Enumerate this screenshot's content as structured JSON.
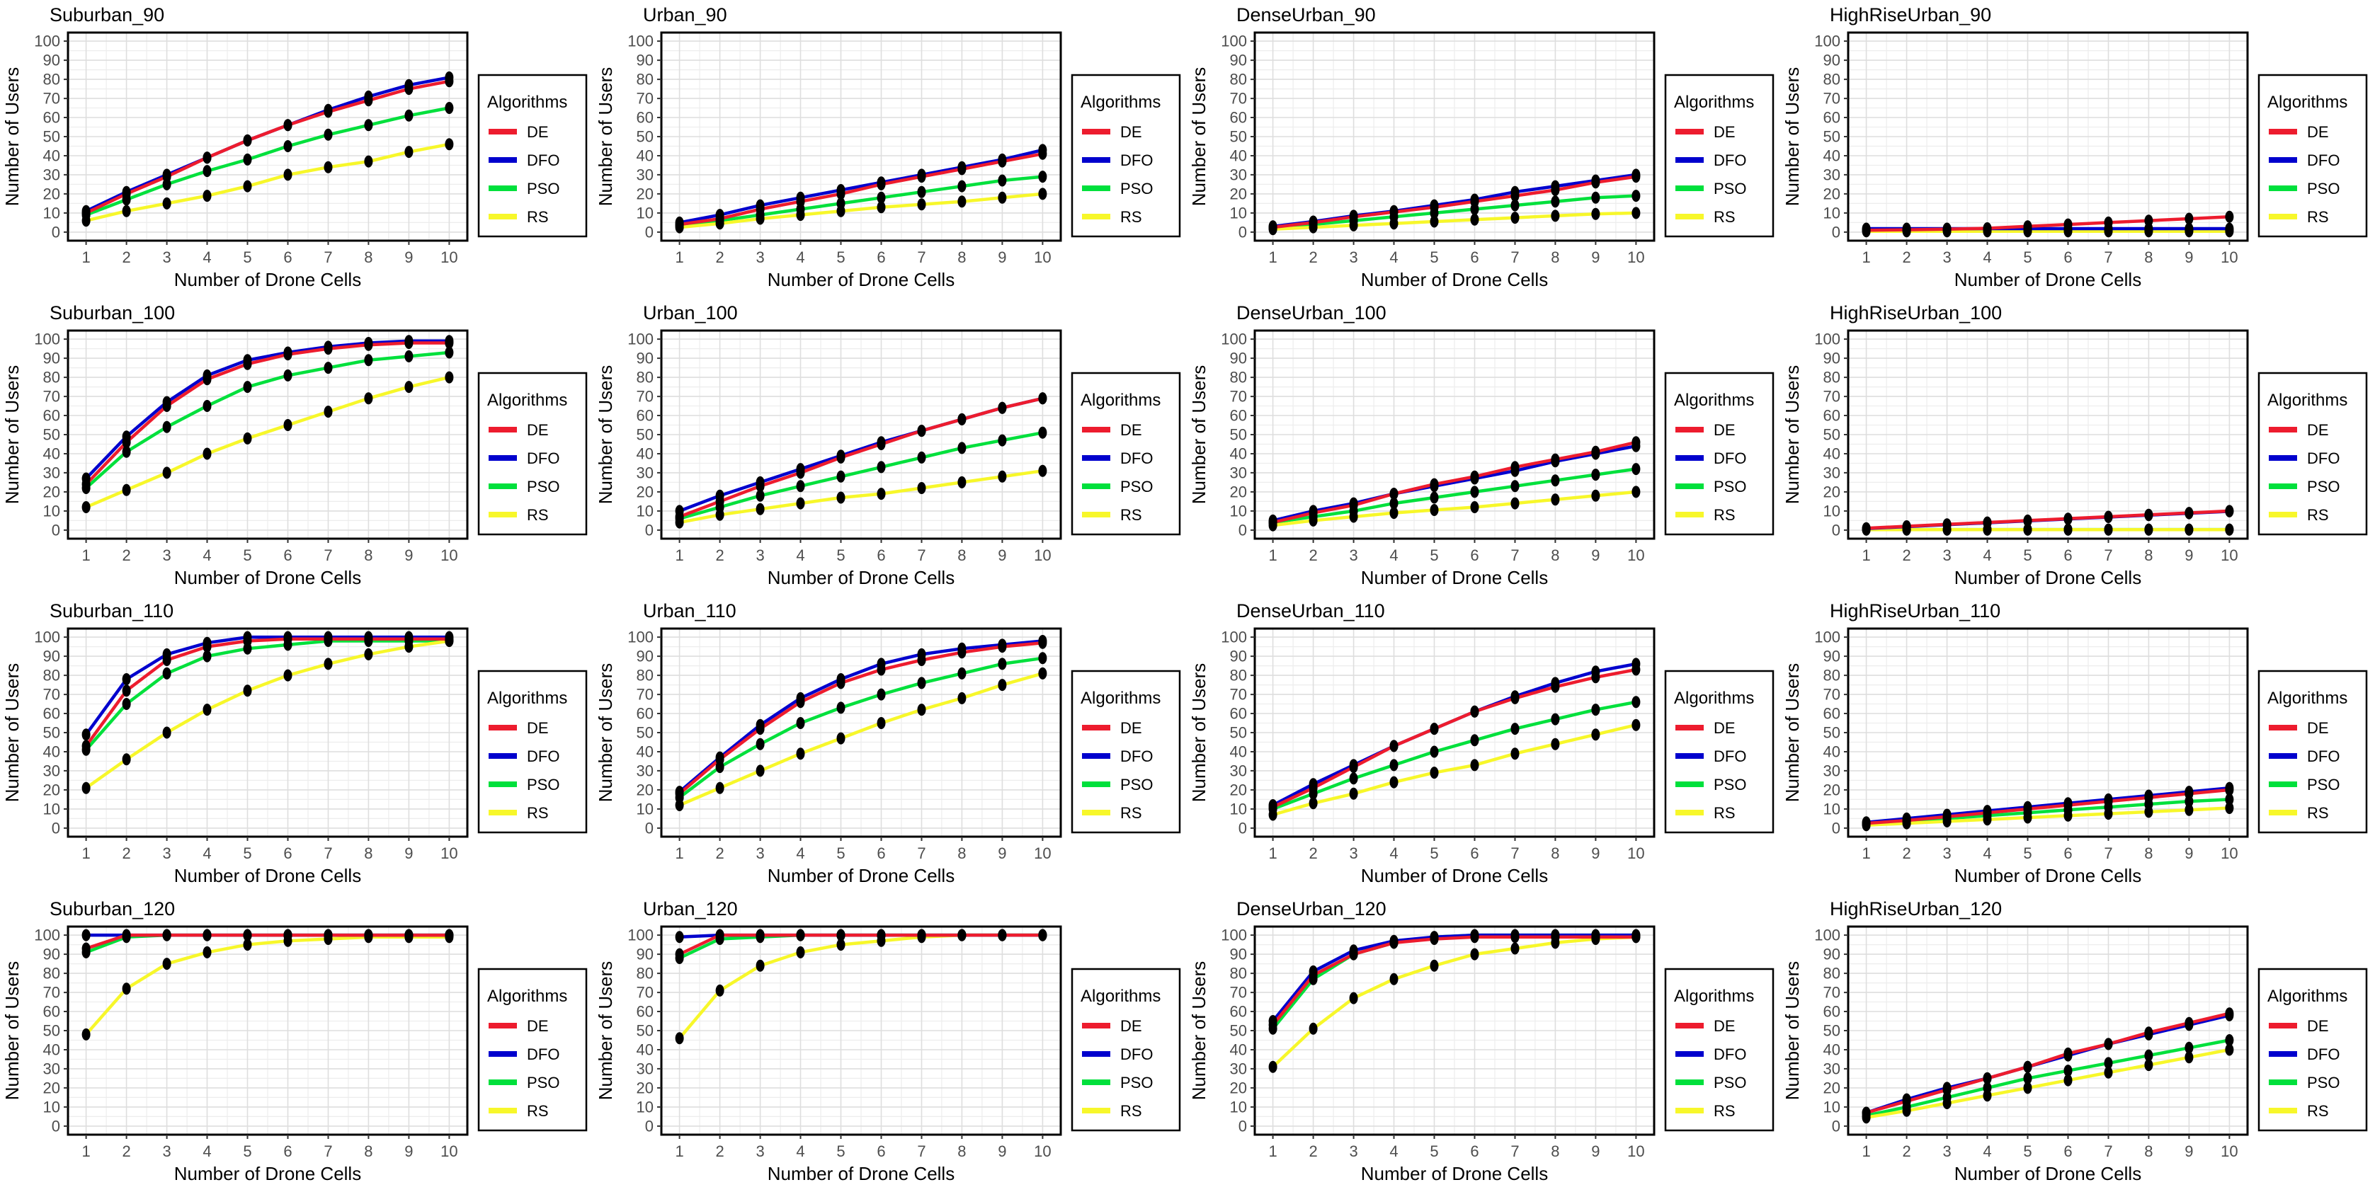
{
  "figure": {
    "background": "#ffffff",
    "grid_major_color": "#dedede",
    "grid_minor_color": "#ededed",
    "panel_border_color": "#000000",
    "tick_label_color": "#4d4d4d",
    "marker_color": "#000000"
  },
  "legend": {
    "title": "Algorithms",
    "position": "right",
    "items": [
      {
        "label": "DE",
        "color": "#ED1C2E"
      },
      {
        "label": "DFO",
        "color": "#0000CD"
      },
      {
        "label": "PSO",
        "color": "#00E03C"
      },
      {
        "label": "RS",
        "color": "#F7F72A"
      }
    ]
  },
  "axes": {
    "xlabel": "Number of Drone Cells",
    "ylabel": "Number of Users",
    "xticks": [
      1,
      2,
      3,
      4,
      5,
      6,
      7,
      8,
      9,
      10
    ],
    "yticks": [
      0,
      10,
      20,
      30,
      40,
      50,
      60,
      70,
      80,
      90,
      100
    ],
    "xlim": [
      1,
      10
    ],
    "ylim": [
      0,
      100
    ],
    "grid": true
  },
  "chart_data": [
    {
      "type": "line",
      "title": "Suburban_90",
      "x": [
        1,
        2,
        3,
        4,
        5,
        6,
        7,
        8,
        9,
        10
      ],
      "series": [
        {
          "name": "DE",
          "values": [
            10,
            20,
            29,
            39,
            48,
            56,
            63,
            69,
            75,
            79
          ]
        },
        {
          "name": "DFO",
          "values": [
            11,
            21,
            30,
            39,
            48,
            56,
            64,
            71,
            77,
            81
          ]
        },
        {
          "name": "PSO",
          "values": [
            9,
            17,
            25,
            32,
            38,
            45,
            51,
            56,
            61,
            65
          ]
        },
        {
          "name": "RS",
          "values": [
            6,
            11,
            15,
            19,
            24,
            30,
            34,
            37,
            42,
            46
          ]
        }
      ]
    },
    {
      "type": "line",
      "title": "Urban_90",
      "x": [
        1,
        2,
        3,
        4,
        5,
        6,
        7,
        8,
        9,
        10
      ],
      "series": [
        {
          "name": "DE",
          "values": [
            4,
            7,
            12,
            16,
            20,
            25,
            29,
            33,
            37,
            41
          ]
        },
        {
          "name": "DFO",
          "values": [
            5,
            9,
            14,
            18,
            22,
            26,
            30,
            34,
            38,
            43
          ]
        },
        {
          "name": "PSO",
          "values": [
            3.5,
            6,
            9,
            12,
            15,
            18,
            21,
            24,
            27,
            29
          ]
        },
        {
          "name": "RS",
          "values": [
            2.5,
            4.5,
            7,
            9,
            11,
            13,
            14.5,
            16,
            18,
            20
          ]
        }
      ]
    },
    {
      "type": "line",
      "title": "DenseUrban_90",
      "x": [
        1,
        2,
        3,
        4,
        5,
        6,
        7,
        8,
        9,
        10
      ],
      "series": [
        {
          "name": "DE",
          "values": [
            2.5,
            5,
            8,
            10.5,
            13,
            16,
            19,
            22,
            26,
            29
          ]
        },
        {
          "name": "DFO",
          "values": [
            3,
            5.5,
            8.5,
            11,
            14,
            17,
            21,
            24,
            27,
            30
          ]
        },
        {
          "name": "PSO",
          "values": [
            2,
            4,
            6,
            8,
            10,
            12,
            14,
            16,
            18,
            19
          ]
        },
        {
          "name": "RS",
          "values": [
            1.5,
            2.5,
            3.5,
            4.5,
            5.5,
            6.5,
            7.5,
            8.5,
            9.5,
            10
          ]
        }
      ]
    },
    {
      "type": "line",
      "title": "HighRiseUrban_90",
      "x": [
        1,
        2,
        3,
        4,
        5,
        6,
        7,
        8,
        9,
        10
      ],
      "series": [
        {
          "name": "DE",
          "values": [
            1,
            1.2,
            1.5,
            2,
            3,
            4,
            5,
            6,
            7,
            8
          ]
        },
        {
          "name": "DFO",
          "values": [
            1.8,
            1.8,
            1.8,
            1.8,
            1.8,
            1.8,
            1.8,
            1.8,
            1.8,
            1.8
          ]
        },
        {
          "name": "PSO",
          "values": [
            1,
            1,
            1,
            1,
            1,
            1,
            1,
            1,
            1,
            1
          ]
        },
        {
          "name": "RS",
          "values": [
            0.4,
            0.4,
            0.4,
            0.4,
            0.4,
            0.4,
            0.4,
            0.4,
            0.4,
            0.4
          ]
        }
      ]
    },
    {
      "type": "line",
      "title": "Suburban_100",
      "x": [
        1,
        2,
        3,
        4,
        5,
        6,
        7,
        8,
        9,
        10
      ],
      "series": [
        {
          "name": "DE",
          "values": [
            24,
            46,
            65,
            79,
            87,
            92,
            95,
            97,
            98,
            98
          ]
        },
        {
          "name": "DFO",
          "values": [
            27,
            49,
            67,
            81,
            89,
            93,
            96,
            98,
            99,
            99
          ]
        },
        {
          "name": "PSO",
          "values": [
            22,
            41,
            54,
            65,
            75,
            81,
            85,
            89,
            91,
            93
          ]
        },
        {
          "name": "RS",
          "values": [
            12,
            21,
            30,
            40,
            48,
            55,
            62,
            69,
            75,
            80
          ]
        }
      ]
    },
    {
      "type": "line",
      "title": "Urban_100",
      "x": [
        1,
        2,
        3,
        4,
        5,
        6,
        7,
        8,
        9,
        10
      ],
      "series": [
        {
          "name": "DE",
          "values": [
            7,
            15,
            23,
            30,
            38,
            45,
            52,
            58,
            64,
            69
          ]
        },
        {
          "name": "DFO",
          "values": [
            10,
            18,
            25,
            32,
            39,
            46,
            52,
            58,
            64,
            69
          ]
        },
        {
          "name": "PSO",
          "values": [
            6,
            12,
            18,
            23,
            28,
            33,
            38,
            43,
            47,
            51
          ]
        },
        {
          "name": "RS",
          "values": [
            4,
            8,
            11,
            14,
            17,
            19,
            22,
            25,
            28,
            31
          ]
        }
      ]
    },
    {
      "type": "line",
      "title": "DenseUrban_100",
      "x": [
        1,
        2,
        3,
        4,
        5,
        6,
        7,
        8,
        9,
        10
      ],
      "series": [
        {
          "name": "DE",
          "values": [
            4,
            9,
            13,
            19,
            24,
            28,
            33,
            37,
            41,
            46
          ]
        },
        {
          "name": "DFO",
          "values": [
            5,
            10,
            14,
            19,
            23,
            27,
            31,
            36,
            40,
            44
          ]
        },
        {
          "name": "PSO",
          "values": [
            4,
            7,
            10,
            14,
            17,
            20,
            23,
            26,
            29,
            32
          ]
        },
        {
          "name": "RS",
          "values": [
            2.5,
            5,
            7,
            9,
            10.5,
            12,
            14,
            16,
            18,
            20
          ]
        }
      ]
    },
    {
      "type": "line",
      "title": "HighRiseUrban_100",
      "x": [
        1,
        2,
        3,
        4,
        5,
        6,
        7,
        8,
        9,
        10
      ],
      "series": [
        {
          "name": "DE",
          "values": [
            1,
            2,
            3,
            4,
            5,
            6,
            7,
            8,
            9,
            10
          ]
        },
        {
          "name": "DFO",
          "values": [
            0.8,
            1.8,
            2.8,
            3.8,
            4.8,
            5.8,
            6.8,
            7.8,
            8.8,
            9.8
          ]
        },
        {
          "name": "PSO",
          "values": [
            0.3,
            0.3,
            0.3,
            0.3,
            0.3,
            0.3,
            0.3,
            0.3,
            0.3,
            0.3
          ]
        },
        {
          "name": "RS",
          "values": [
            0.2,
            0.2,
            0.2,
            0.2,
            0.2,
            0.2,
            0.2,
            0.2,
            0.2,
            0.2
          ]
        }
      ]
    },
    {
      "type": "line",
      "title": "Suburban_110",
      "x": [
        1,
        2,
        3,
        4,
        5,
        6,
        7,
        8,
        9,
        10
      ],
      "series": [
        {
          "name": "DE",
          "values": [
            43,
            72,
            88,
            95,
            98,
            99,
            99,
            99,
            99,
            99
          ]
        },
        {
          "name": "DFO",
          "values": [
            49,
            78,
            91,
            97,
            100,
            100,
            100,
            100,
            100,
            100
          ]
        },
        {
          "name": "PSO",
          "values": [
            41,
            65,
            81,
            90,
            94,
            96,
            98,
            98,
            98,
            98
          ]
        },
        {
          "name": "RS",
          "values": [
            21,
            36,
            50,
            62,
            72,
            80,
            86,
            91,
            95,
            98
          ]
        }
      ]
    },
    {
      "type": "line",
      "title": "Urban_110",
      "x": [
        1,
        2,
        3,
        4,
        5,
        6,
        7,
        8,
        9,
        10
      ],
      "series": [
        {
          "name": "DE",
          "values": [
            18,
            36,
            52,
            66,
            76,
            83,
            88,
            92,
            95,
            97
          ]
        },
        {
          "name": "DFO",
          "values": [
            19,
            37,
            54,
            68,
            78,
            86,
            91,
            94,
            96,
            98
          ]
        },
        {
          "name": "PSO",
          "values": [
            16,
            32,
            44,
            55,
            63,
            70,
            76,
            81,
            86,
            89
          ]
        },
        {
          "name": "RS",
          "values": [
            12,
            21,
            30,
            39,
            47,
            55,
            62,
            68,
            75,
            81
          ]
        }
      ]
    },
    {
      "type": "line",
      "title": "DenseUrban_110",
      "x": [
        1,
        2,
        3,
        4,
        5,
        6,
        7,
        8,
        9,
        10
      ],
      "series": [
        {
          "name": "DE",
          "values": [
            11,
            21,
            32,
            43,
            52,
            61,
            68,
            74,
            79,
            83
          ]
        },
        {
          "name": "DFO",
          "values": [
            12,
            23,
            33,
            43,
            52,
            61,
            69,
            76,
            82,
            86
          ]
        },
        {
          "name": "PSO",
          "values": [
            10,
            18,
            26,
            33,
            40,
            46,
            52,
            57,
            62,
            66
          ]
        },
        {
          "name": "RS",
          "values": [
            7,
            13,
            18,
            24,
            29,
            33,
            39,
            44,
            49,
            54
          ]
        }
      ]
    },
    {
      "type": "line",
      "title": "HighRiseUrban_110",
      "x": [
        1,
        2,
        3,
        4,
        5,
        6,
        7,
        8,
        9,
        10
      ],
      "series": [
        {
          "name": "DE",
          "values": [
            2.5,
            4,
            6,
            8,
            10,
            12,
            14,
            16,
            18,
            20
          ]
        },
        {
          "name": "DFO",
          "values": [
            3,
            5,
            7,
            9,
            11,
            13,
            15,
            17,
            19,
            21
          ]
        },
        {
          "name": "PSO",
          "values": [
            2,
            3.5,
            5,
            6.5,
            8,
            9.5,
            11,
            12.5,
            14,
            15
          ]
        },
        {
          "name": "RS",
          "values": [
            1.5,
            2.5,
            3.5,
            4.5,
            5.5,
            6.5,
            7.5,
            8.5,
            9.5,
            10.5
          ]
        }
      ]
    },
    {
      "type": "line",
      "title": "Suburban_120",
      "x": [
        1,
        2,
        3,
        4,
        5,
        6,
        7,
        8,
        9,
        10
      ],
      "series": [
        {
          "name": "DE",
          "values": [
            93,
            100,
            100,
            100,
            100,
            100,
            100,
            100,
            100,
            100
          ]
        },
        {
          "name": "DFO",
          "values": [
            100,
            100,
            100,
            100,
            100,
            100,
            100,
            100,
            100,
            100
          ]
        },
        {
          "name": "PSO",
          "values": [
            91,
            99,
            100,
            100,
            100,
            100,
            100,
            100,
            100,
            100
          ]
        },
        {
          "name": "RS",
          "values": [
            48,
            72,
            85,
            91,
            95,
            97,
            98,
            99,
            99,
            99
          ]
        }
      ]
    },
    {
      "type": "line",
      "title": "Urban_120",
      "x": [
        1,
        2,
        3,
        4,
        5,
        6,
        7,
        8,
        9,
        10
      ],
      "series": [
        {
          "name": "DE",
          "values": [
            90,
            100,
            100,
            100,
            100,
            100,
            100,
            100,
            100,
            100
          ]
        },
        {
          "name": "DFO",
          "values": [
            99,
            100,
            100,
            100,
            100,
            100,
            100,
            100,
            100,
            100
          ]
        },
        {
          "name": "PSO",
          "values": [
            88,
            98,
            99,
            100,
            100,
            100,
            100,
            100,
            100,
            100
          ]
        },
        {
          "name": "RS",
          "values": [
            46,
            71,
            84,
            91,
            95,
            97,
            99,
            100,
            100,
            100
          ]
        }
      ]
    },
    {
      "type": "line",
      "title": "DenseUrban_120",
      "x": [
        1,
        2,
        3,
        4,
        5,
        6,
        7,
        8,
        9,
        10
      ],
      "series": [
        {
          "name": "DE",
          "values": [
            53,
            79,
            90,
            96,
            98,
            99,
            99,
            99,
            99,
            99
          ]
        },
        {
          "name": "DFO",
          "values": [
            55,
            81,
            92,
            97,
            99,
            100,
            100,
            100,
            100,
            100
          ]
        },
        {
          "name": "PSO",
          "values": [
            51,
            77,
            90,
            96,
            99,
            100,
            100,
            100,
            100,
            100
          ]
        },
        {
          "name": "RS",
          "values": [
            31,
            51,
            67,
            77,
            84,
            90,
            93,
            96,
            98,
            99
          ]
        }
      ]
    },
    {
      "type": "line",
      "title": "HighRiseUrban_120",
      "x": [
        1,
        2,
        3,
        4,
        5,
        6,
        7,
        8,
        9,
        10
      ],
      "series": [
        {
          "name": "DE",
          "values": [
            7,
            13,
            19,
            25,
            31,
            38,
            43,
            49,
            54,
            59
          ]
        },
        {
          "name": "DFO",
          "values": [
            7,
            14,
            20,
            25,
            31,
            37,
            43,
            48,
            53,
            58
          ]
        },
        {
          "name": "PSO",
          "values": [
            5.5,
            10,
            15,
            20,
            25,
            29,
            33,
            37,
            41,
            45
          ]
        },
        {
          "name": "RS",
          "values": [
            4.5,
            8,
            12,
            16,
            20,
            24,
            28,
            32,
            36,
            40
          ]
        }
      ]
    }
  ]
}
